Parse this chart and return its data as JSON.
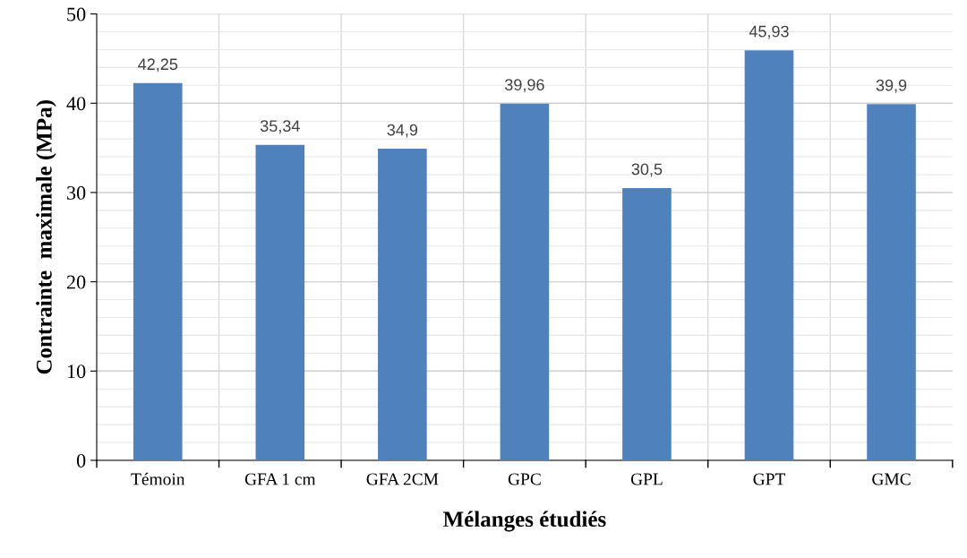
{
  "chart_data": {
    "type": "bar",
    "xlabel": "Mélanges étudiés",
    "ylabel": "Contrainte  maximale (MPa)",
    "categories": [
      "Témoin",
      "GFA 1 cm",
      "GFA 2CM",
      "GPC",
      "GPL",
      "GPT",
      "GMC"
    ],
    "values": [
      42.25,
      35.34,
      34.9,
      39.96,
      30.5,
      45.93,
      39.9
    ],
    "value_labels": [
      "42,25",
      "35,34",
      "34,9",
      "39,96",
      "30,5",
      "45,93",
      "39,9"
    ],
    "color": "#4f81bd",
    "ylim": [
      0,
      50
    ],
    "yticks": [
      0,
      10,
      20,
      30,
      40,
      50
    ],
    "grid": true,
    "legend": false
  }
}
